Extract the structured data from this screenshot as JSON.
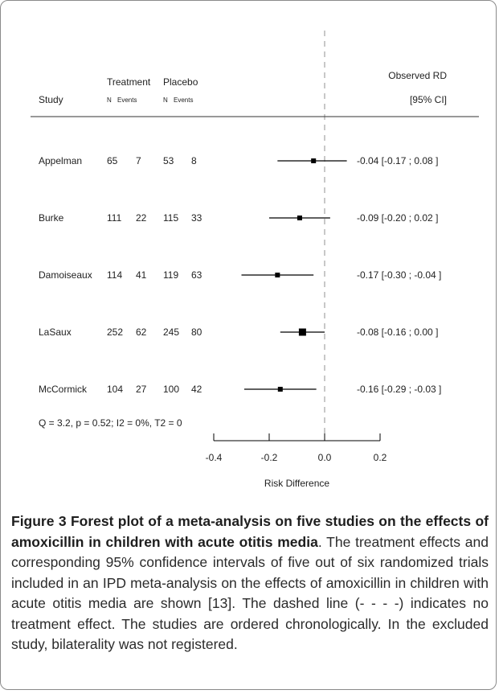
{
  "chart_data": {
    "type": "forest",
    "headers": {
      "study": "Study",
      "treatment": "Treatment",
      "placebo": "Placebo",
      "n": "N",
      "events": "Events",
      "observed_rd": "Observed RD",
      "ci": "[95% CI]"
    },
    "studies": [
      {
        "name": "Appelman",
        "t_n": "65",
        "t_events": "7",
        "p_n": "53",
        "p_events": "8",
        "rd": -0.04,
        "lower": -0.17,
        "upper": 0.08,
        "weight": 1.0,
        "label": "-0.04 [-0.17 ; 0.08 ]"
      },
      {
        "name": "Burke",
        "t_n": "111",
        "t_events": "22",
        "p_n": "115",
        "p_events": "33",
        "rd": -0.09,
        "lower": -0.2,
        "upper": 0.02,
        "weight": 1.0,
        "label": "-0.09 [-0.20 ; 0.02 ]"
      },
      {
        "name": "Damoiseaux",
        "t_n": "114",
        "t_events": "41",
        "p_n": "119",
        "p_events": "63",
        "rd": -0.17,
        "lower": -0.3,
        "upper": -0.04,
        "weight": 1.0,
        "label": "-0.17 [-0.30 ; -0.04 ]"
      },
      {
        "name": "LaSaux",
        "t_n": "252",
        "t_events": "62",
        "p_n": "245",
        "p_events": "80",
        "rd": -0.08,
        "lower": -0.16,
        "upper": 0.0,
        "weight": 1.5,
        "label": "-0.08 [-0.16 ; 0.00 ]"
      },
      {
        "name": "McCormick",
        "t_n": "104",
        "t_events": "27",
        "p_n": "100",
        "p_events": "42",
        "rd": -0.16,
        "lower": -0.29,
        "upper": -0.03,
        "weight": 1.0,
        "label": "-0.16 [-0.29 ; -0.03 ]"
      }
    ],
    "heterogeneity": "Q = 3.2, p = 0.52; I2 = 0%, T2 = 0",
    "x_axis": {
      "label": "Risk Difference",
      "ticks": [
        -0.4,
        -0.2,
        0.0,
        0.2
      ],
      "tick_labels": [
        "-0.4",
        "-0.2",
        "0.0",
        "0.2"
      ],
      "range": [
        -0.4,
        0.2
      ]
    },
    "reference_line": 0.0
  },
  "caption": {
    "title": "Figure 3 Forest plot of a meta-analysis on five studies on the effects of amoxicillin in children with acute otitis media",
    "body": ". The treatment effects and corresponding 95% confidence intervals of five out of six randomized trials included in an IPD meta-analysis on the effects of amoxicillin in children with acute otitis media are shown [13]. The dashed line (- - - -) indicates no treatment effect. The studies are ordered chronologically. In the excluded study, bilaterality was not registered."
  }
}
